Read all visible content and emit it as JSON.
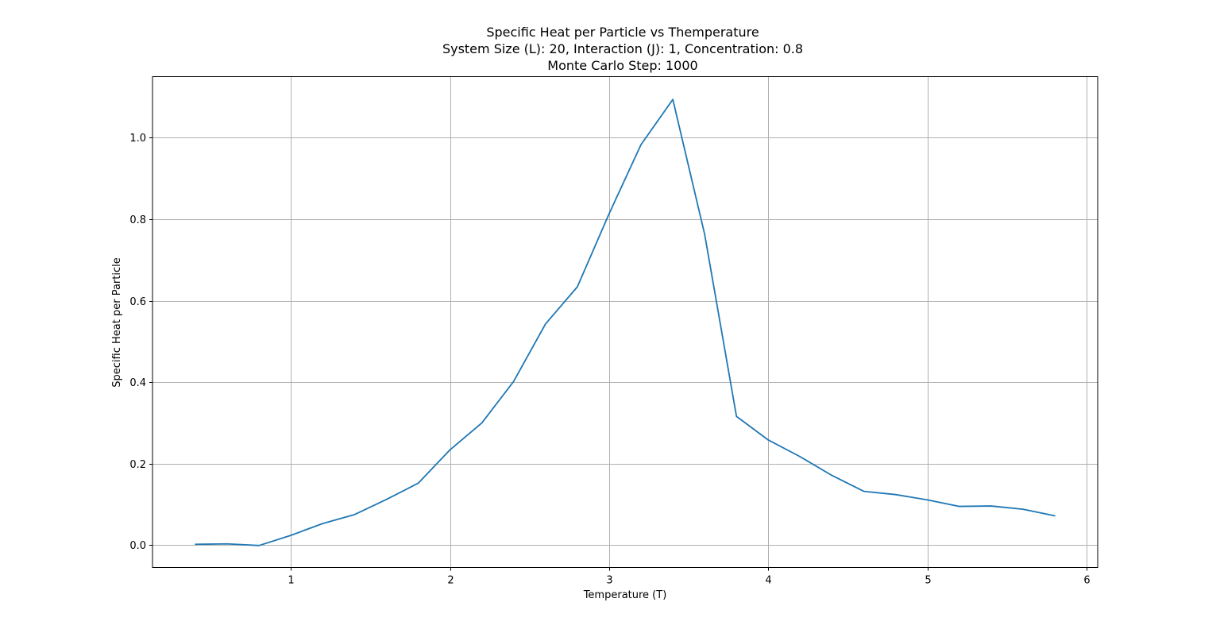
{
  "chart_data": {
    "type": "line",
    "title_lines": [
      "Specific Heat per Particle vs Themperature",
      "System Size (L): 20, Interaction (J): 1, Concentration: 0.8",
      "Monte Carlo Step: 1000"
    ],
    "xlabel": "Temperature (T)",
    "ylabel": "Specific Heat per Particle",
    "xlim": [
      0.13,
      6.07
    ],
    "ylim": [
      -0.055,
      1.15
    ],
    "x_ticks": [
      1,
      2,
      3,
      4,
      5,
      6
    ],
    "y_ticks": [
      0.0,
      0.2,
      0.4,
      0.6,
      0.8,
      1.0
    ],
    "x_tick_labels": [
      "1",
      "2",
      "3",
      "4",
      "5",
      "6"
    ],
    "y_tick_labels": [
      "0.0",
      "0.2",
      "0.4",
      "0.6",
      "0.8",
      "1.0"
    ],
    "grid": true,
    "legend": "none",
    "series": [
      {
        "color": "#1f77b4",
        "x": [
          0.4,
          0.6,
          0.8,
          1.0,
          1.2,
          1.4,
          1.6,
          1.8,
          2.0,
          2.2,
          2.4,
          2.6,
          2.8,
          3.0,
          3.2,
          3.4,
          3.6,
          3.8,
          4.0,
          4.2,
          4.4,
          4.6,
          4.8,
          5.0,
          5.2,
          5.4,
          5.6,
          5.8
        ],
        "y": [
          0.002,
          0.003,
          -0.001,
          0.024,
          0.053,
          0.075,
          0.112,
          0.152,
          0.234,
          0.3,
          0.402,
          0.543,
          0.634,
          0.814,
          0.983,
          1.094,
          0.763,
          0.316,
          0.258,
          0.217,
          0.171,
          0.132,
          0.124,
          0.111,
          0.095,
          0.096,
          0.088,
          0.072
        ]
      }
    ]
  }
}
